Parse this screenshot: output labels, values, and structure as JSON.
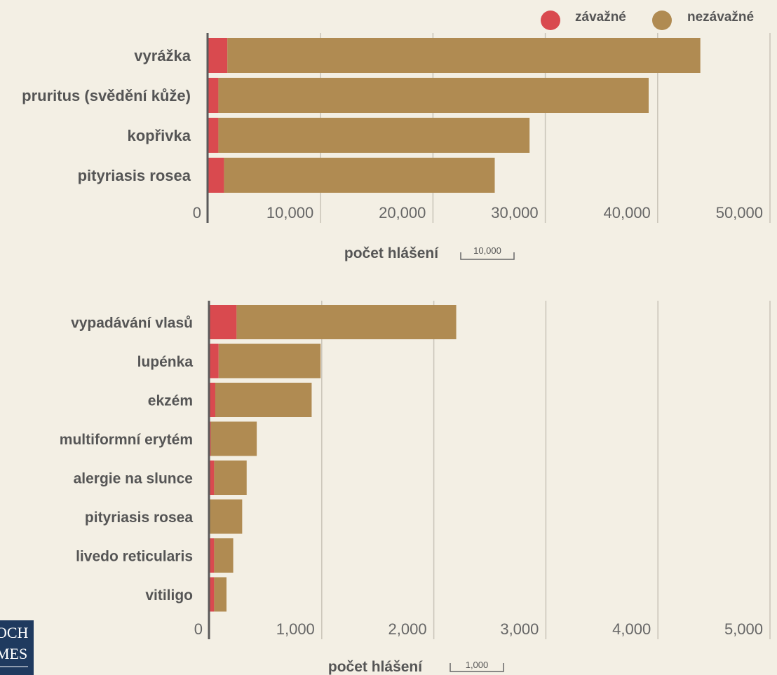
{
  "colors": {
    "serious": "#d94a4f",
    "nonserious": "#b08b52",
    "grid": "#c9c4b8",
    "axis": "#5a5a5a",
    "logo_bg": "#1f3a5f"
  },
  "legend": {
    "serious": "závažné",
    "nonserious": "nezávažné"
  },
  "logo": {
    "line1": "OCH",
    "line2": "MES"
  },
  "chart_data": [
    {
      "type": "bar",
      "orientation": "horizontal",
      "stacked": true,
      "categories": [
        "vyrážka",
        "pruritus (svědění kůže)",
        "kopřivka",
        "pityriasis rosea"
      ],
      "series": [
        {
          "name": "závažné",
          "values": [
            1700,
            900,
            900,
            1400
          ]
        },
        {
          "name": "nezávažné",
          "values": [
            42100,
            38300,
            27700,
            24100
          ]
        }
      ],
      "xlim": [
        0,
        50000
      ],
      "xticks": [
        "0",
        "10,000",
        "20,000",
        "30,000",
        "40,000",
        "50,000"
      ],
      "xlabel": "počet hlášení",
      "scale_label": "10,000",
      "grid": true,
      "legend_position": "top-right"
    },
    {
      "type": "bar",
      "orientation": "horizontal",
      "stacked": true,
      "categories": [
        "vypadávání vlasů",
        "lupénka",
        "ekzém",
        "multiformní erytém",
        "alergie na slunce",
        "pityriasis rosea",
        "livedo reticularis",
        "vitiligo"
      ],
      "series": [
        {
          "name": "závažné",
          "values": [
            240,
            80,
            50,
            10,
            40,
            0,
            40,
            40
          ]
        },
        {
          "name": "nezávažné",
          "values": [
            1960,
            910,
            860,
            410,
            290,
            290,
            170,
            110
          ]
        }
      ],
      "xlim": [
        0,
        5000
      ],
      "xticks": [
        "0",
        "1,000",
        "2,000",
        "3,000",
        "4,000",
        "5,000"
      ],
      "xlabel": "počet hlášení",
      "scale_label": "1,000",
      "grid": true
    }
  ]
}
